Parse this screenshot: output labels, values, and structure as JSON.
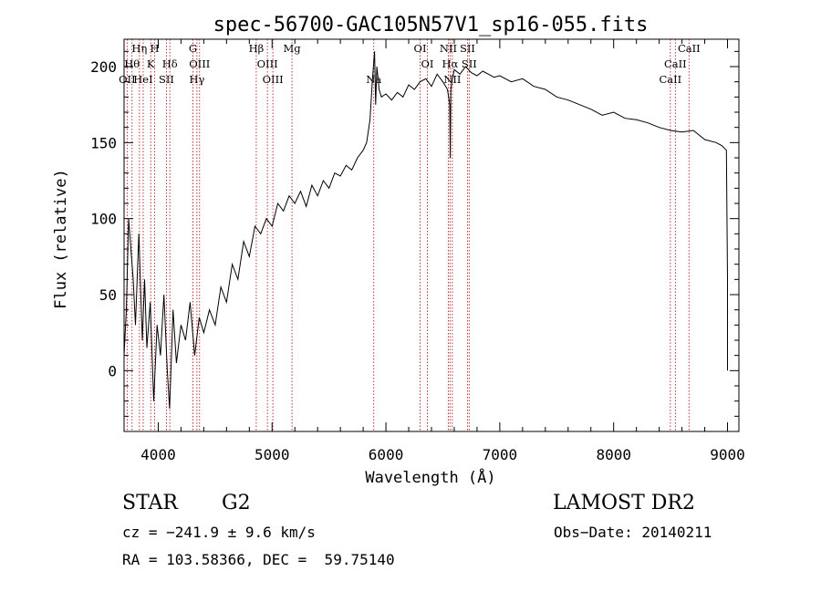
{
  "chart_data": {
    "type": "line",
    "title": "spec-56700-GAC105N57V1_sp16-055.fits",
    "xlabel": "Wavelength (Å)",
    "ylabel": "Flux (relative)",
    "xlim": [
      3700,
      9100
    ],
    "ylim": [
      -40,
      218
    ],
    "xticks": [
      4000,
      5000,
      6000,
      7000,
      8000,
      9000
    ],
    "yticks": [
      0,
      50,
      100,
      150,
      200
    ],
    "grid": false,
    "line_color": "#000000",
    "marker_color": "#b22222",
    "series": [
      {
        "x": [
          3700,
          3720,
          3740,
          3760,
          3780,
          3800,
          3830,
          3860,
          3880,
          3900,
          3930,
          3960,
          3990,
          4020,
          4050,
          4080,
          4100,
          4130,
          4160,
          4200,
          4240,
          4280,
          4320,
          4360,
          4400,
          4450,
          4500,
          4550,
          4600,
          4650,
          4700,
          4750,
          4800,
          4850,
          4900,
          4950,
          5000,
          5050,
          5100,
          5150,
          5200,
          5250,
          5300,
          5350,
          5400,
          5450,
          5500,
          5550,
          5600,
          5650,
          5700,
          5750,
          5800,
          5830,
          5860,
          5880,
          5900,
          5910,
          5920,
          5940,
          5960,
          6000,
          6050,
          6100,
          6150,
          6200,
          6250,
          6300,
          6350,
          6400,
          6450,
          6500,
          6540,
          6560,
          6565,
          6570,
          6580,
          6600,
          6650,
          6700,
          6750,
          6800,
          6850,
          6900,
          6950,
          7000,
          7100,
          7200,
          7300,
          7400,
          7500,
          7600,
          7700,
          7800,
          7900,
          8000,
          8100,
          8200,
          8300,
          8400,
          8500,
          8600,
          8700,
          8800,
          8900,
          8950,
          8990,
          9000,
          9000
        ],
        "y": [
          10,
          40,
          100,
          80,
          60,
          30,
          90,
          20,
          60,
          15,
          45,
          -20,
          30,
          10,
          50,
          0,
          -25,
          40,
          5,
          30,
          20,
          45,
          10,
          35,
          25,
          40,
          30,
          55,
          45,
          70,
          60,
          85,
          75,
          95,
          90,
          100,
          95,
          110,
          105,
          115,
          110,
          118,
          108,
          122,
          115,
          125,
          120,
          130,
          128,
          135,
          132,
          140,
          145,
          150,
          165,
          190,
          210,
          175,
          200,
          185,
          180,
          182,
          178,
          183,
          180,
          188,
          185,
          190,
          192,
          187,
          195,
          190,
          185,
          175,
          140,
          185,
          190,
          198,
          195,
          200,
          196,
          194,
          197,
          195,
          193,
          194,
          190,
          192,
          187,
          185,
          180,
          178,
          175,
          172,
          168,
          170,
          166,
          165,
          163,
          160,
          158,
          157,
          158,
          152,
          150,
          148,
          145,
          60,
          0
        ]
      }
    ],
    "lines": [
      {
        "x": 3727,
        "labels": [
          "OII"
        ]
      },
      {
        "x": 3770,
        "labels": [
          "Hθ"
        ]
      },
      {
        "x": 3835,
        "labels": [
          "Hη"
        ]
      },
      {
        "x": 3868,
        "labels": [
          "HeI"
        ]
      },
      {
        "x": 3934,
        "labels": [
          "K"
        ]
      },
      {
        "x": 3969,
        "labels": [
          "H"
        ]
      },
      {
        "x": 4072,
        "labels": [
          "SII"
        ]
      },
      {
        "x": 4102,
        "labels": [
          "Hδ"
        ]
      },
      {
        "x": 4305,
        "labels": [
          "G"
        ]
      },
      {
        "x": 4340,
        "labels": [
          "Hγ"
        ]
      },
      {
        "x": 4363,
        "labels": [
          "OIII"
        ]
      },
      {
        "x": 4861,
        "labels": [
          "Hβ"
        ]
      },
      {
        "x": 4959,
        "labels": [
          "OIII"
        ]
      },
      {
        "x": 5007,
        "labels": [
          "OIII"
        ]
      },
      {
        "x": 5175,
        "labels": [
          "Mg"
        ]
      },
      {
        "x": 5893,
        "labels": [
          "Na"
        ]
      },
      {
        "x": 6300,
        "labels": [
          "OI"
        ]
      },
      {
        "x": 6364,
        "labels": [
          "OI"
        ]
      },
      {
        "x": 6548,
        "labels": [
          "NII"
        ]
      },
      {
        "x": 6563,
        "labels": [
          "Hα"
        ]
      },
      {
        "x": 6583,
        "labels": [
          "NII"
        ]
      },
      {
        "x": 6716,
        "labels": [
          "SII"
        ]
      },
      {
        "x": 6731,
        "labels": [
          "SII"
        ]
      },
      {
        "x": 8498,
        "labels": [
          "CaII"
        ]
      },
      {
        "x": 8542,
        "labels": [
          "CaII"
        ]
      },
      {
        "x": 8662,
        "labels": [
          "CaII"
        ]
      }
    ],
    "line_annotation_groups": [
      {
        "x": 3770,
        "text": "Hθ"
      },
      {
        "x": 3727,
        "text": "OII"
      },
      {
        "x": 3835,
        "text": "Hη"
      },
      {
        "x": 3969,
        "text": "H"
      },
      {
        "x": 3934,
        "text": "K"
      },
      {
        "x": 3868,
        "text": "HeI"
      },
      {
        "x": 4072,
        "text": "SII"
      },
      {
        "x": 4102,
        "text": "Hδ"
      },
      {
        "x": 4305,
        "text": "G"
      },
      {
        "x": 4363,
        "text": "OIII"
      },
      {
        "x": 4340,
        "text": "Hγ"
      },
      {
        "x": 4861,
        "text": "Hβ"
      },
      {
        "x": 4959,
        "text": "OIII"
      },
      {
        "x": 5007,
        "text": "OIII"
      },
      {
        "x": 5175,
        "text": "Mg"
      },
      {
        "x": 5893,
        "text": "Na"
      },
      {
        "x": 6300,
        "text": "OI"
      },
      {
        "x": 6364,
        "text": "OI"
      },
      {
        "x": 6548,
        "text": "NII"
      },
      {
        "x": 6563,
        "text": "Hα"
      },
      {
        "x": 6583,
        "text": "NII"
      },
      {
        "x": 6716,
        "text": "SII"
      },
      {
        "x": 6731,
        "text": "SII"
      },
      {
        "x": 8662,
        "text": "CaII"
      },
      {
        "x": 8542,
        "text": "CaII"
      },
      {
        "x": 8498,
        "text": "CaII"
      }
    ]
  },
  "info": {
    "class": "STAR",
    "subclass": "G2",
    "survey": "LAMOST DR2",
    "cz": "cz = −241.9 ± 9.6 km/s",
    "obs_date": "Obs−Date: 20140211",
    "coords": "RA = 103.58366, DEC =  59.75140"
  }
}
